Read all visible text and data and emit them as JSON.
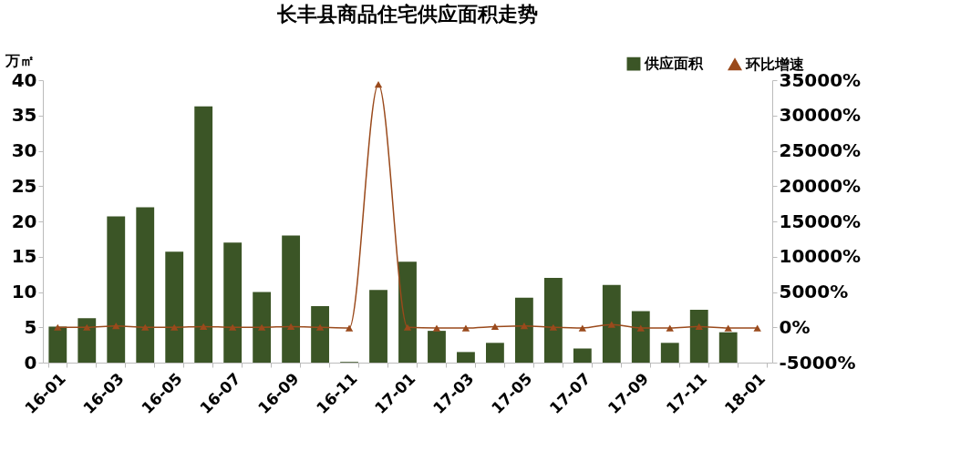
{
  "chart_data": {
    "type": "bar",
    "title": "长丰县商品住宅供应面积走势",
    "ylabel": "万㎡",
    "categories": [
      "16-01",
      null,
      "16-03",
      null,
      "16-05",
      null,
      "16-07",
      null,
      "16-09",
      null,
      "16-11",
      null,
      "17-01",
      null,
      "17-03",
      null,
      "17-05",
      null,
      "17-07",
      null,
      "17-09",
      null,
      "17-11",
      null,
      "18-01"
    ],
    "series": [
      {
        "name": "供应面积",
        "color": "#3b5526",
        "values": [
          5.1,
          6.3,
          20.7,
          22.0,
          15.7,
          36.3,
          17.0,
          10.0,
          18.0,
          8.0,
          0.1,
          10.3,
          14.3,
          4.5,
          1.5,
          2.8,
          9.2,
          12.0,
          2.0,
          11.0,
          7.3,
          2.8,
          7.5,
          4.3,
          null
        ]
      },
      {
        "name": "环比增速",
        "type": "line",
        "axis": "y2",
        "color": "#9a4a1c",
        "marker": "triangle",
        "values": [
          0,
          0,
          200,
          0,
          0,
          100,
          0,
          0,
          100,
          0,
          -100,
          34400,
          0,
          -100,
          -100,
          100,
          200,
          0,
          -100,
          400,
          -100,
          -100,
          100,
          -100,
          -100
        ]
      }
    ],
    "ylim": [
      0,
      40
    ],
    "yticks": [
      0,
      5,
      10,
      15,
      20,
      25,
      30,
      35,
      40
    ],
    "y2lim": [
      -5000,
      35000
    ],
    "y2ticks": [
      {
        "value": -5000,
        "label": "-5000%"
      },
      {
        "value": 0,
        "label": "0%"
      },
      {
        "value": 5000,
        "label": "5000%"
      },
      {
        "value": 10000,
        "label": "10000%"
      },
      {
        "value": 15000,
        "label": "15000%"
      },
      {
        "value": 20000,
        "label": "20000%"
      },
      {
        "value": 25000,
        "label": "25000%"
      },
      {
        "value": 30000,
        "label": "30000%"
      },
      {
        "value": 35000,
        "label": "35000%"
      }
    ],
    "grid": false,
    "legend": "top right"
  }
}
